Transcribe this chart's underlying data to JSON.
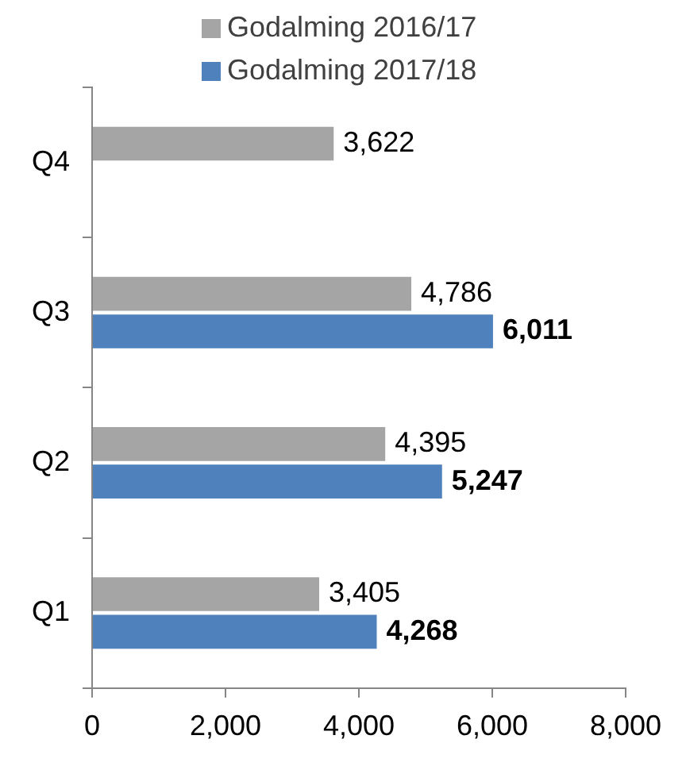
{
  "chart_data": {
    "type": "bar",
    "orientation": "horizontal",
    "categories": [
      "Q4",
      "Q3",
      "Q2",
      "Q1"
    ],
    "series": [
      {
        "name": "Godalming 2016/17",
        "color": "#a5a5a5",
        "values": [
          3622,
          4786,
          4395,
          3405
        ],
        "value_labels": [
          "3,622",
          "4,786",
          "4,395",
          "3,405"
        ]
      },
      {
        "name": "Godalming 2017/18",
        "color": "#4f81bd",
        "values": [
          null,
          6011,
          5247,
          4268
        ],
        "value_labels": [
          null,
          "6,011",
          "5,247",
          "4,268"
        ]
      }
    ],
    "xlim": [
      0,
      8000
    ],
    "xticks": [
      0,
      {
        "value": 2000,
        "label": "2,000"
      },
      {
        "value": 4000,
        "label": "4,000"
      },
      {
        "value": 6000,
        "label": "6,000"
      },
      {
        "value": 8000,
        "label": "8,000"
      }
    ],
    "legend": "top",
    "grid": false
  }
}
